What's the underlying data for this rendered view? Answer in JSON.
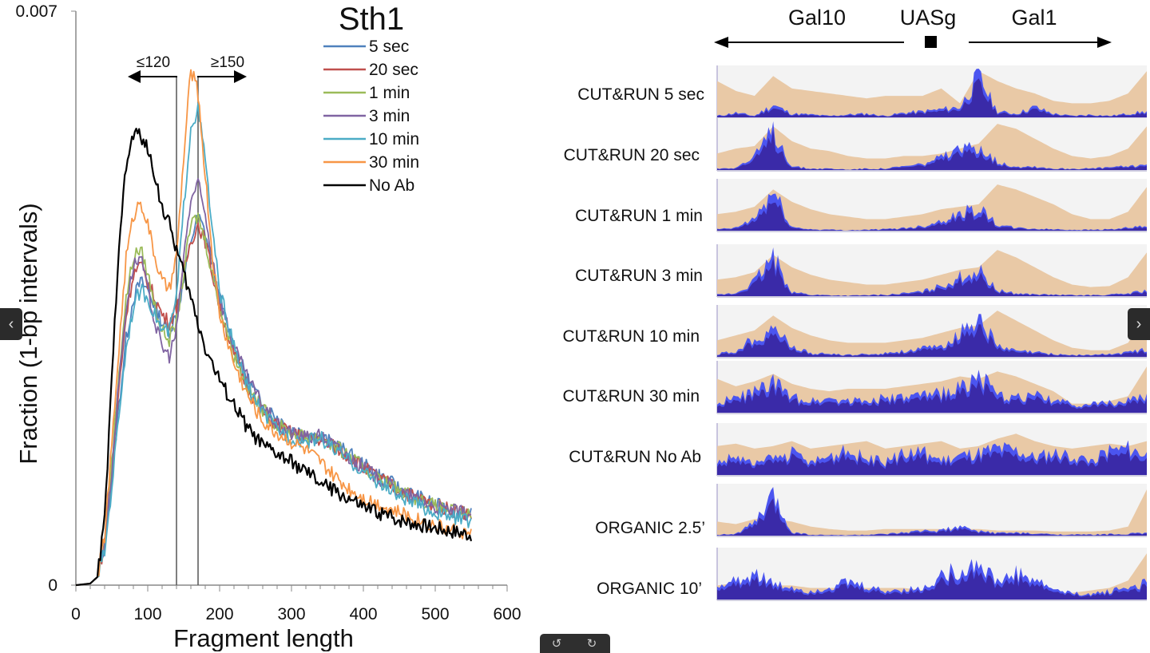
{
  "chart_data": [
    {
      "type": "line",
      "title": "Sth1",
      "xlabel": "Fragment length",
      "ylabel": "Fraction  (1-bp intervals)",
      "xlim": [
        0,
        600
      ],
      "ylim": [
        0,
        0.007
      ],
      "x_ticks": [
        "0",
        "100",
        "200",
        "300",
        "400",
        "500",
        "600"
      ],
      "y_ticks": [
        "0",
        "0.007"
      ],
      "grid": false,
      "legend_position": "top-center",
      "annotations": [
        {
          "text": "≤120",
          "arrow": "left",
          "at_x": 140
        },
        {
          "text": "≥150",
          "arrow": "right",
          "at_x": 170
        }
      ],
      "vlines": [
        140,
        170
      ],
      "x": [
        0,
        20,
        30,
        40,
        50,
        60,
        70,
        80,
        90,
        100,
        110,
        120,
        130,
        140,
        150,
        160,
        170,
        180,
        190,
        200,
        220,
        240,
        260,
        280,
        300,
        320,
        340,
        360,
        380,
        400,
        450,
        500,
        550
      ],
      "series": [
        {
          "name": "5 sec",
          "color": "#4f81bd",
          "values": [
            0,
            2e-05,
            0.0001,
            0.0005,
            0.0013,
            0.0022,
            0.003,
            0.0035,
            0.0037,
            0.0036,
            0.0034,
            0.0032,
            0.0031,
            0.0033,
            0.0037,
            0.0042,
            0.0045,
            0.0043,
            0.0039,
            0.0035,
            0.0029,
            0.0025,
            0.0022,
            0.00205,
            0.0019,
            0.00185,
            0.0018,
            0.00172,
            0.0016,
            0.00147,
            0.00118,
            0.00098,
            0.00085
          ]
        },
        {
          "name": "20 sec",
          "color": "#c0504d",
          "values": [
            0,
            2e-05,
            0.0001,
            0.0005,
            0.0014,
            0.0024,
            0.0033,
            0.0038,
            0.0039,
            0.0037,
            0.0035,
            0.0033,
            0.0032,
            0.0034,
            0.0038,
            0.0042,
            0.0044,
            0.0042,
            0.0038,
            0.0034,
            0.0028,
            0.0024,
            0.0021,
            0.00195,
            0.00185,
            0.0018,
            0.00178,
            0.00168,
            0.00157,
            0.00143,
            0.00116,
            0.00097,
            0.00087
          ]
        },
        {
          "name": "1 min",
          "color": "#9bbb59",
          "values": [
            0,
            2e-05,
            0.0001,
            0.0005,
            0.0015,
            0.0026,
            0.0035,
            0.004,
            0.0041,
            0.0038,
            0.0034,
            0.0031,
            0.003,
            0.0032,
            0.0038,
            0.0044,
            0.0045,
            0.0042,
            0.0038,
            0.0034,
            0.0028,
            0.0024,
            0.00215,
            0.00195,
            0.00185,
            0.0018,
            0.0018,
            0.0017,
            0.00157,
            0.00143,
            0.00115,
            0.00096,
            0.00085
          ]
        },
        {
          "name": "3 min",
          "color": "#8064a2",
          "values": [
            0,
            2e-05,
            0.0001,
            0.0005,
            0.0014,
            0.0025,
            0.0034,
            0.0039,
            0.004,
            0.0036,
            0.0032,
            0.0029,
            0.0028,
            0.0031,
            0.004,
            0.0047,
            0.0049,
            0.0045,
            0.004,
            0.0035,
            0.0029,
            0.0025,
            0.0022,
            0.00195,
            0.00185,
            0.0018,
            0.00182,
            0.0017,
            0.00156,
            0.00143,
            0.00114,
            0.00095,
            0.00086
          ]
        },
        {
          "name": "10 min",
          "color": "#4bacc6",
          "values": [
            0,
            2e-05,
            0.0001,
            0.0004,
            0.0012,
            0.0021,
            0.0029,
            0.0034,
            0.0036,
            0.0035,
            0.0033,
            0.0031,
            0.0031,
            0.0035,
            0.0046,
            0.0056,
            0.0058,
            0.0052,
            0.0043,
            0.0036,
            0.0029,
            0.0024,
            0.0021,
            0.0019,
            0.0018,
            0.00175,
            0.0018,
            0.00165,
            0.00152,
            0.00138,
            0.00108,
            0.00088,
            0.00078
          ]
        },
        {
          "name": "30 min",
          "color": "#f79646",
          "values": [
            0,
            2e-05,
            0.0001,
            0.0006,
            0.0017,
            0.0029,
            0.004,
            0.0045,
            0.0047,
            0.0044,
            0.004,
            0.0037,
            0.0036,
            0.004,
            0.0052,
            0.0063,
            0.006,
            0.005,
            0.004,
            0.0033,
            0.0027,
            0.0023,
            0.002,
            0.00185,
            0.00175,
            0.00165,
            0.0015,
            0.00132,
            0.00118,
            0.00107,
            0.00088,
            0.00073,
            0.00062
          ]
        },
        {
          "name": "No Ab",
          "color": "#000000",
          "values": [
            0,
            2e-05,
            0.0001,
            0.0008,
            0.0025,
            0.0042,
            0.0051,
            0.0055,
            0.0055,
            0.0053,
            0.005,
            0.0046,
            0.0044,
            0.0041,
            0.0038,
            0.0035,
            0.0032,
            0.0029,
            0.0027,
            0.0025,
            0.0022,
            0.0019,
            0.0017,
            0.0016,
            0.0015,
            0.00138,
            0.00125,
            0.00115,
            0.00105,
            0.00095,
            0.0008,
            0.0007,
            0.00062
          ]
        }
      ]
    },
    {
      "type": "area",
      "locus_labels": {
        "left_gene": "Gal10",
        "middle_element": "UASg",
        "right_gene": "Gal1"
      },
      "track_colors": {
        "background": "#f3f3f3",
        "reference_fill": "#e9c9a6",
        "signal_fill": "#3a2aa8",
        "highlight_fill": "#4b55f0"
      },
      "bins": 24,
      "tracks": [
        {
          "label": "CUT&RUN 5 sec",
          "reference": [
            0.75,
            0.55,
            0.45,
            0.85,
            0.6,
            0.55,
            0.5,
            0.45,
            0.4,
            0.45,
            0.45,
            0.45,
            0.6,
            0.3,
            0.95,
            0.75,
            0.6,
            0.5,
            0.35,
            0.3,
            0.3,
            0.35,
            0.5,
            0.95
          ],
          "signal": [
            0.05,
            0.12,
            0.05,
            0.3,
            0.1,
            0.08,
            0.05,
            0.08,
            0.1,
            0.05,
            0.12,
            0.15,
            0.2,
            0.25,
            0.95,
            0.15,
            0.1,
            0.25,
            0.1,
            0.05,
            0.08,
            0.05,
            0.1,
            0.15
          ]
        },
        {
          "label": "CUT&RUN 20 sec",
          "reference": [
            0.35,
            0.45,
            0.5,
            0.9,
            0.6,
            0.45,
            0.4,
            0.3,
            0.25,
            0.25,
            0.3,
            0.3,
            0.35,
            0.45,
            0.55,
            0.95,
            0.85,
            0.65,
            0.45,
            0.3,
            0.25,
            0.3,
            0.45,
            0.9
          ],
          "signal": [
            0.05,
            0.08,
            0.3,
            0.95,
            0.1,
            0.05,
            0.05,
            0.03,
            0.05,
            0.05,
            0.1,
            0.15,
            0.3,
            0.45,
            0.6,
            0.2,
            0.1,
            0.1,
            0.05,
            0.05,
            0.05,
            0.08,
            0.1,
            0.15
          ]
        },
        {
          "label": "CUT&RUN 1 min",
          "reference": [
            0.35,
            0.4,
            0.5,
            0.85,
            0.6,
            0.45,
            0.35,
            0.3,
            0.25,
            0.25,
            0.3,
            0.35,
            0.45,
            0.5,
            0.55,
            0.95,
            0.85,
            0.7,
            0.55,
            0.35,
            0.25,
            0.25,
            0.4,
            0.9
          ],
          "signal": [
            0.05,
            0.08,
            0.3,
            0.9,
            0.1,
            0.05,
            0.04,
            0.03,
            0.04,
            0.05,
            0.08,
            0.12,
            0.25,
            0.4,
            0.55,
            0.15,
            0.08,
            0.06,
            0.05,
            0.04,
            0.04,
            0.05,
            0.08,
            0.12
          ]
        },
        {
          "label": "CUT&RUN 3 min",
          "reference": [
            0.35,
            0.4,
            0.5,
            0.85,
            0.6,
            0.45,
            0.35,
            0.3,
            0.25,
            0.25,
            0.3,
            0.35,
            0.45,
            0.55,
            0.6,
            0.95,
            0.8,
            0.6,
            0.4,
            0.25,
            0.2,
            0.22,
            0.4,
            0.9
          ],
          "signal": [
            0.05,
            0.08,
            0.35,
            0.9,
            0.12,
            0.05,
            0.04,
            0.03,
            0.04,
            0.05,
            0.08,
            0.12,
            0.25,
            0.45,
            0.6,
            0.15,
            0.08,
            0.06,
            0.05,
            0.04,
            0.04,
            0.05,
            0.08,
            0.15
          ]
        },
        {
          "label": "CUT&RUN 10 min",
          "reference": [
            0.35,
            0.45,
            0.55,
            0.85,
            0.6,
            0.45,
            0.35,
            0.3,
            0.3,
            0.3,
            0.35,
            0.4,
            0.5,
            0.6,
            0.65,
            0.95,
            0.75,
            0.55,
            0.35,
            0.2,
            0.15,
            0.15,
            0.3,
            0.9
          ],
          "signal": [
            0.08,
            0.15,
            0.45,
            0.7,
            0.25,
            0.1,
            0.08,
            0.06,
            0.08,
            0.1,
            0.15,
            0.2,
            0.25,
            0.55,
            0.95,
            0.25,
            0.15,
            0.12,
            0.08,
            0.06,
            0.06,
            0.08,
            0.12,
            0.2
          ]
        },
        {
          "label": "CUT&RUN 30 min",
          "reference": [
            0.7,
            0.55,
            0.65,
            0.8,
            0.6,
            0.5,
            0.45,
            0.5,
            0.5,
            0.5,
            0.55,
            0.6,
            0.65,
            0.75,
            0.7,
            0.85,
            0.75,
            0.6,
            0.45,
            0.2,
            0.2,
            0.25,
            0.35,
            0.95
          ],
          "signal": [
            0.25,
            0.35,
            0.5,
            0.7,
            0.35,
            0.3,
            0.35,
            0.3,
            0.3,
            0.35,
            0.35,
            0.4,
            0.45,
            0.6,
            0.85,
            0.4,
            0.35,
            0.4,
            0.3,
            0.2,
            0.2,
            0.25,
            0.3,
            0.35
          ]
        },
        {
          "label": "CUT&RUN No Ab",
          "reference": [
            0.6,
            0.65,
            0.55,
            0.6,
            0.7,
            0.55,
            0.6,
            0.65,
            0.7,
            0.55,
            0.6,
            0.65,
            0.7,
            0.55,
            0.6,
            0.75,
            0.85,
            0.7,
            0.6,
            0.55,
            0.6,
            0.65,
            0.6,
            0.7
          ],
          "signal": [
            0.3,
            0.45,
            0.25,
            0.4,
            0.5,
            0.3,
            0.45,
            0.55,
            0.4,
            0.3,
            0.5,
            0.55,
            0.35,
            0.45,
            0.5,
            0.6,
            0.55,
            0.4,
            0.5,
            0.45,
            0.35,
            0.55,
            0.6,
            0.45
          ]
        },
        {
          "label": "ORGANIC 2.5’",
          "reference": [
            0.3,
            0.25,
            0.35,
            0.35,
            0.3,
            0.2,
            0.15,
            0.12,
            0.12,
            0.15,
            0.15,
            0.15,
            0.15,
            0.15,
            0.15,
            0.12,
            0.12,
            0.12,
            0.1,
            0.1,
            0.1,
            0.12,
            0.2,
            0.95
          ],
          "signal": [
            0.04,
            0.06,
            0.3,
            0.9,
            0.1,
            0.04,
            0.03,
            0.03,
            0.04,
            0.05,
            0.08,
            0.12,
            0.15,
            0.2,
            0.12,
            0.08,
            0.08,
            0.06,
            0.05,
            0.04,
            0.04,
            0.05,
            0.06,
            0.08
          ]
        },
        {
          "label": "ORGANIC 10’",
          "reference": [
            0.3,
            0.35,
            0.35,
            0.3,
            0.3,
            0.25,
            0.25,
            0.25,
            0.25,
            0.25,
            0.25,
            0.2,
            0.2,
            0.2,
            0.2,
            0.2,
            0.15,
            0.15,
            0.15,
            0.15,
            0.2,
            0.25,
            0.4,
            0.95
          ],
          "signal": [
            0.3,
            0.45,
            0.65,
            0.35,
            0.3,
            0.2,
            0.3,
            0.4,
            0.3,
            0.2,
            0.25,
            0.25,
            0.55,
            0.7,
            0.85,
            0.4,
            0.6,
            0.45,
            0.25,
            0.15,
            0.15,
            0.2,
            0.3,
            0.4
          ]
        }
      ]
    }
  ],
  "controls": {
    "prev_icon": "‹",
    "next_icon": "›",
    "rotate_left_icon": "↺",
    "rotate_right_icon": "↻"
  }
}
